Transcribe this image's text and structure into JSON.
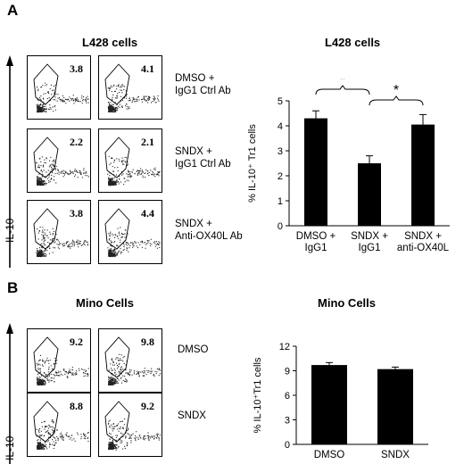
{
  "panel_a": {
    "letter": "A",
    "flow_title": "L428  cells",
    "chart_title": "L428  cells",
    "axis_marker": "IL-10",
    "rows": [
      {
        "condition_line1": "DMSO +",
        "condition_line2": "IgG1 Ctrl Ab",
        "values": [
          "3.8",
          "4.1"
        ]
      },
      {
        "condition_line1": "SNDX +",
        "condition_line2": "IgG1 Ctrl Ab",
        "values": [
          "2.2",
          "2.1"
        ]
      },
      {
        "condition_line1": "SNDX +",
        "condition_line2": "Anti-OX40L Ab",
        "values": [
          "3.8",
          "4.4"
        ]
      }
    ]
  },
  "panel_b": {
    "letter": "B",
    "flow_title": "Mino Cells",
    "chart_title": "Mino Cells",
    "axis_marker": "IL-10",
    "rows": [
      {
        "condition_line1": "DMSO",
        "condition_line2": "",
        "values": [
          "9.2",
          "9.8"
        ]
      },
      {
        "condition_line1": "SNDX",
        "condition_line2": "",
        "values": [
          "8.8",
          "9.2"
        ]
      }
    ]
  },
  "chart_data": [
    {
      "type": "bar",
      "title": "L428  cells",
      "ylabel": "% IL-10⁺ Tr1 cells",
      "categories": [
        [
          "DMSO +",
          "IgG1"
        ],
        [
          "SNDX +",
          "IgG1"
        ],
        [
          "SNDX +",
          "anti-OX40L"
        ]
      ],
      "values": [
        4.3,
        2.5,
        4.05
      ],
      "errors": [
        0.3,
        0.3,
        0.4
      ],
      "ylim": [
        0,
        5
      ],
      "yticks": [
        "0",
        "1",
        "2",
        "3",
        "4",
        "5"
      ],
      "significance": [
        {
          "from": 0,
          "to": 1,
          "label": "*"
        },
        {
          "from": 1,
          "to": 2,
          "label": "*"
        }
      ],
      "bar_color": "#000000"
    },
    {
      "type": "bar",
      "title": "Mino Cells",
      "ylabel": "% IL-10⁺Tr1 cells",
      "categories": [
        [
          "DMSO"
        ],
        [
          "SNDX"
        ]
      ],
      "values": [
        9.7,
        9.2
      ],
      "errors": [
        0.3,
        0.25
      ],
      "ylim": [
        0,
        12
      ],
      "yticks": [
        "0",
        "3",
        "6",
        "9",
        "12"
      ],
      "significance": [],
      "bar_color": "#000000"
    }
  ]
}
